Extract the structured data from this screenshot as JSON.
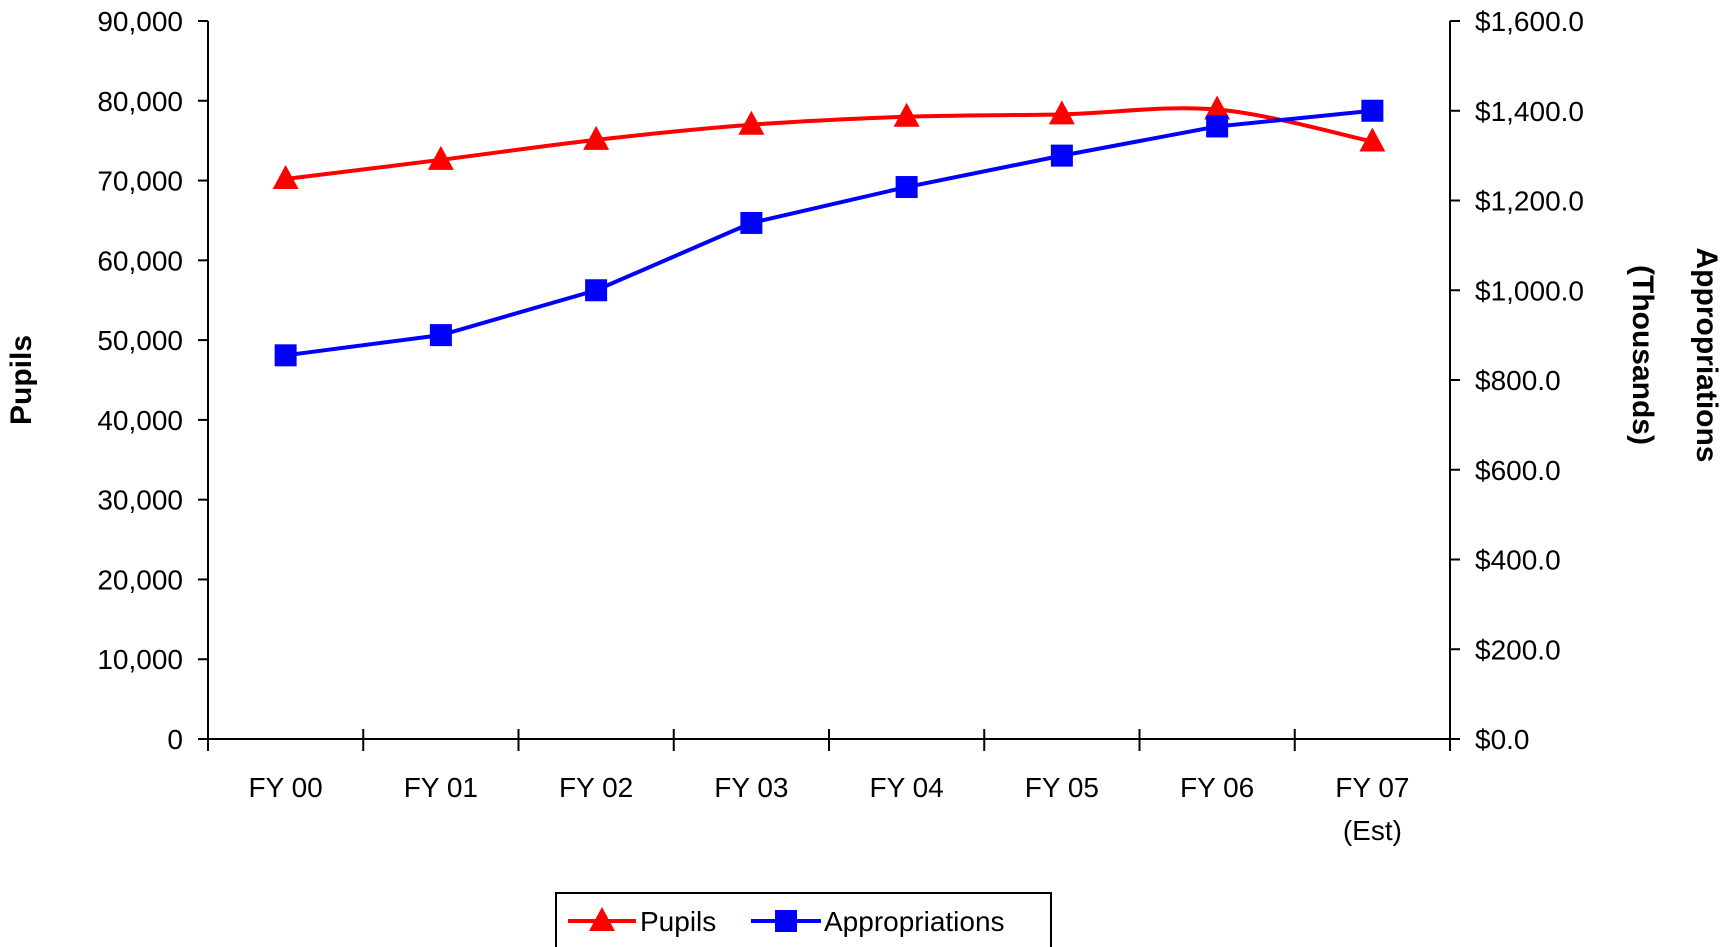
{
  "chart_data": {
    "type": "line",
    "categories": [
      "FY 00",
      "FY 01",
      "FY 02",
      "FY 03",
      "FY 04",
      "FY 05",
      "FY 06",
      "FY 07"
    ],
    "category_sublabels": [
      "",
      "",
      "",
      "",
      "",
      "",
      "",
      "(Est)"
    ],
    "series": [
      {
        "name": "Pupils",
        "axis": "left",
        "color": "#ff0000",
        "marker": "triangle",
        "values": [
          70200,
          72600,
          75100,
          77000,
          78000,
          78300,
          78900,
          74900
        ]
      },
      {
        "name": "Appropriations",
        "axis": "right",
        "color": "#0000ff",
        "marker": "square",
        "values": [
          855,
          900,
          1000,
          1150,
          1230,
          1300,
          1365,
          1400
        ]
      }
    ],
    "y_left": {
      "label": "Pupils",
      "ylim": [
        0,
        90000
      ],
      "ticks": [
        0,
        10000,
        20000,
        30000,
        40000,
        50000,
        60000,
        70000,
        80000,
        90000
      ],
      "tick_labels": [
        "0",
        "10,000",
        "20,000",
        "30,000",
        "40,000",
        "50,000",
        "60,000",
        "70,000",
        "80,000",
        "90,000"
      ]
    },
    "y_right": {
      "label_lines": [
        "Appropriations",
        "(Thousands)"
      ],
      "ylim": [
        0,
        1600
      ],
      "ticks": [
        0,
        200,
        400,
        600,
        800,
        1000,
        1200,
        1400,
        1600
      ],
      "tick_labels": [
        "$0.0",
        "$200.0",
        "$400.0",
        "$600.0",
        "$800.0",
        "$1,000.0",
        "$1,200.0",
        "$1,400.0",
        "$1,600.0"
      ]
    },
    "grid": false,
    "legend": {
      "position": "bottom-center",
      "entries": [
        "Pupils",
        "Appropriations"
      ]
    }
  }
}
